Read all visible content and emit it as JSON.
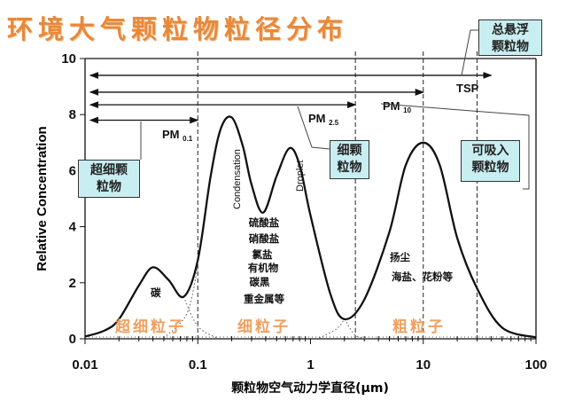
{
  "title": "环境大气颗粒物粒径分布",
  "chart_data": {
    "type": "line",
    "xscale": "log",
    "xlim": [
      0.01,
      100
    ],
    "ylim": [
      0,
      10
    ],
    "xlabel": "颗粒物空气动力学直径(μm)",
    "ylabel": "Relative Concentration",
    "xticks": [
      "0.01",
      "0.1",
      "1",
      "10",
      "100"
    ],
    "yticks": [
      "0",
      "2",
      "4",
      "6",
      "8",
      "10"
    ],
    "curve": [
      [
        0.01,
        0.08
      ],
      [
        0.015,
        0.3
      ],
      [
        0.02,
        0.7
      ],
      [
        0.03,
        1.9
      ],
      [
        0.04,
        2.55
      ],
      [
        0.055,
        2.1
      ],
      [
        0.075,
        1.5
      ],
      [
        0.1,
        2.8
      ],
      [
        0.13,
        5.8
      ],
      [
        0.16,
        7.5
      ],
      [
        0.2,
        7.9
      ],
      [
        0.25,
        6.9
      ],
      [
        0.3,
        5.5
      ],
      [
        0.38,
        4.5
      ],
      [
        0.5,
        5.8
      ],
      [
        0.65,
        6.8
      ],
      [
        0.8,
        6.2
      ],
      [
        1,
        4.4
      ],
      [
        1.5,
        1.6
      ],
      [
        2,
        0.7
      ],
      [
        3,
        1.4
      ],
      [
        5,
        3.8
      ],
      [
        7,
        6.2
      ],
      [
        10,
        7.0
      ],
      [
        14,
        6.2
      ],
      [
        20,
        3.6
      ],
      [
        30,
        1.8
      ],
      [
        50,
        0.4
      ],
      [
        100,
        0.05
      ]
    ],
    "dashed_lines_x": [
      0.1,
      2.5,
      10,
      30
    ],
    "ranges": [
      {
        "label": "TSP",
        "sub": "",
        "to": 40,
        "y": 9.4
      },
      {
        "label": "PM",
        "sub": "10",
        "to": 10,
        "y": 8.8
      },
      {
        "label": "PM",
        "sub": "2.5",
        "to": 2.5,
        "y": 8.35
      },
      {
        "label": "PM",
        "sub": "0.1",
        "to": 0.1,
        "y": 7.8
      }
    ],
    "peak_labels": [
      "Condensation",
      "Droplet"
    ],
    "annotations": {
      "nucleation": "碳",
      "fine": [
        "硫酸盐",
        "硝酸盐",
        "氯盐",
        "有机物",
        "碳黑",
        "重金属等"
      ],
      "coarse": [
        "扬尘",
        "海盐、花粉等"
      ]
    },
    "regions": [
      "超细粒子",
      "细粒子",
      "粗粒子"
    ],
    "callouts": [
      "总悬浮\n颗粒物",
      "超细颗\n粒物",
      "细颗\n粒物",
      "可吸入\n颗粒物"
    ]
  }
}
